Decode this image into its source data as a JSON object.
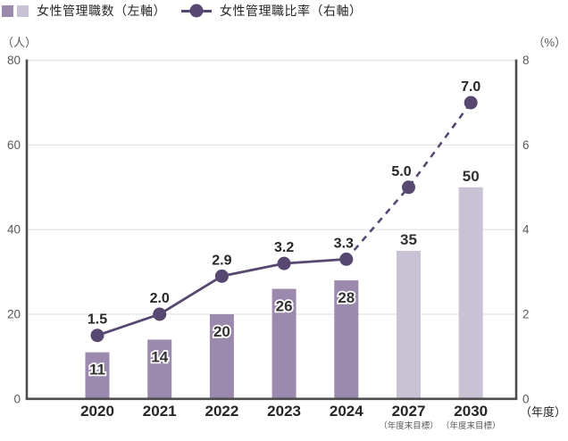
{
  "colors": {
    "bar_actual": "#9c8aae",
    "bar_target": "#c9c1d4",
    "line": "#564870",
    "axis": "#4d4d4d",
    "grid": "#e3e3e3",
    "label_text": "#262626",
    "tick_text": "#595959",
    "bar_label_fill": "#333333",
    "bar_label_outline": "#ffffff"
  },
  "chart_data": {
    "type": "bar+line",
    "title": "",
    "categories": [
      "2020",
      "2021",
      "2022",
      "2023",
      "2024",
      "2027",
      "2030"
    ],
    "category_notes": [
      "",
      "",
      "",
      "",
      "",
      "（年度末目標）",
      "（年度末目標）"
    ],
    "x_axis_unit": "（年度）",
    "units": {
      "left": "（人）",
      "right": "（%）"
    },
    "ylim_left": [
      0,
      80
    ],
    "ylim_right": [
      0,
      8
    ],
    "y_ticks_left": [
      0,
      20,
      40,
      60,
      80
    ],
    "y_ticks_right": [
      0,
      2,
      4,
      6,
      8
    ],
    "grid": true,
    "legend_position": "top-left",
    "series": [
      {
        "name": "女性管理職数（左軸）",
        "type": "bar",
        "axis": "left",
        "values": [
          11,
          14,
          20,
          26,
          28,
          35,
          50
        ],
        "labels": [
          "11",
          "14",
          "20",
          "26",
          "28",
          "35",
          "50"
        ],
        "target_from_index": 5
      },
      {
        "name": "女性管理職比率（右軸）",
        "type": "line",
        "axis": "right",
        "values": [
          1.5,
          2.0,
          2.9,
          3.2,
          3.3,
          5.0,
          7.0
        ],
        "labels": [
          "1.5",
          "2.0",
          "2.9",
          "3.2",
          "3.3",
          "5.0",
          "7.0"
        ],
        "dashed_from_index": 4
      }
    ]
  }
}
